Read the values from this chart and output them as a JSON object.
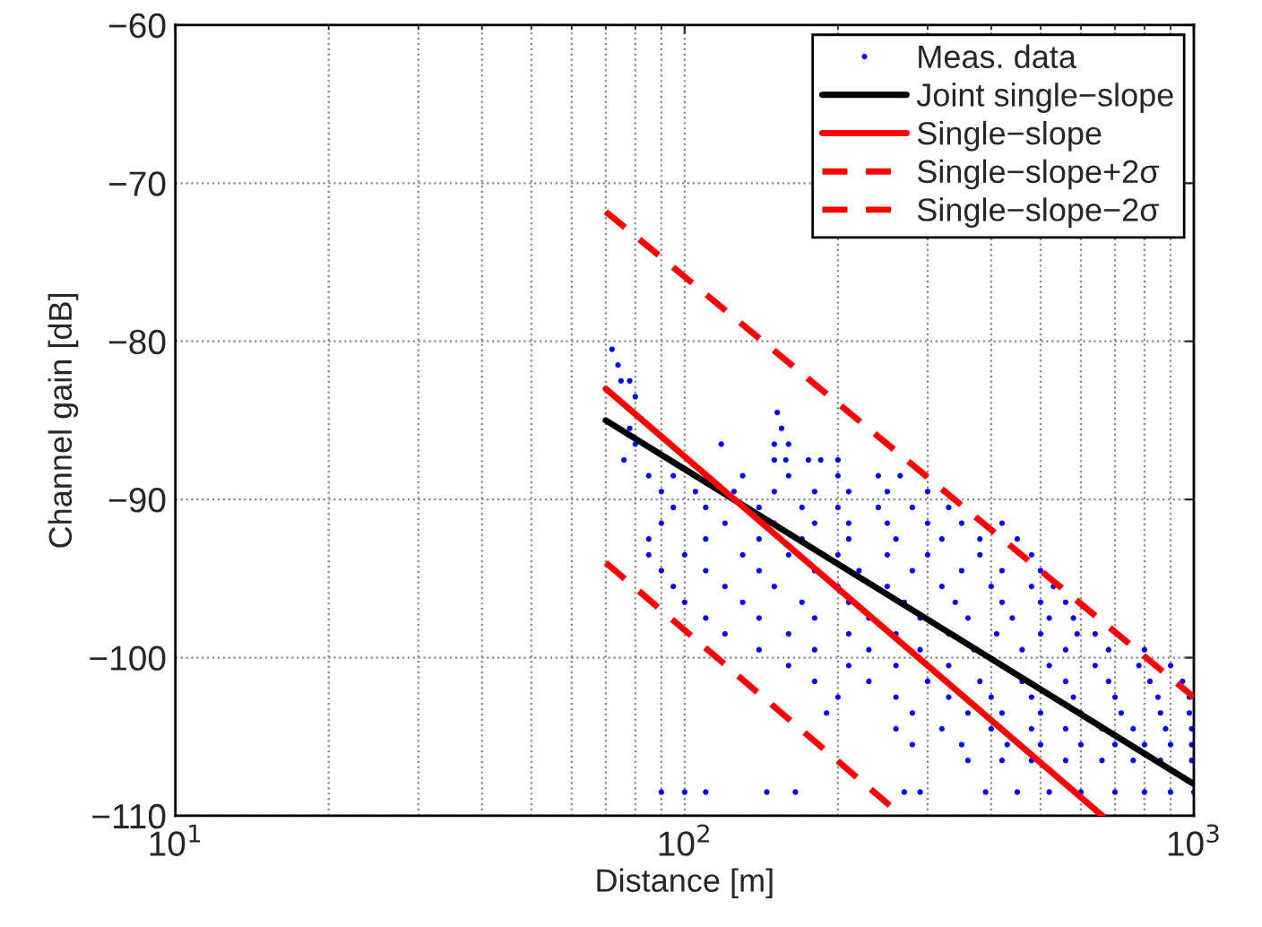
{
  "chart_data": {
    "type": "line",
    "xlabel": "Distance [m]",
    "ylabel": "Channel gain [dB]",
    "log": "x",
    "xlim": [
      10,
      1000
    ],
    "ylim": [
      -110,
      -60
    ],
    "xticks": [
      {
        "value": 10,
        "label": "10$^{1}$"
      },
      {
        "value": 100,
        "label": "10$^{2}$"
      },
      {
        "value": 1000,
        "label": "10$^{3}$"
      }
    ],
    "yticks": [
      {
        "value": -110,
        "label": "−110"
      },
      {
        "value": -100,
        "label": "−100"
      },
      {
        "value": -90,
        "label": "−90"
      },
      {
        "value": -80,
        "label": "−80"
      },
      {
        "value": -70,
        "label": "−70"
      },
      {
        "value": -60,
        "label": "−60"
      }
    ],
    "grid": true,
    "legend": "top right",
    "series": [
      {
        "name": "Meas. data",
        "type": "scatter",
        "color": "#0000ff",
        "marker": "circle",
        "x": [
          72,
          74,
          75,
          78,
          80,
          152,
          78,
          155,
          80,
          118,
          150,
          160,
          76,
          150,
          158,
          175,
          185,
          200,
          85,
          95,
          110,
          130,
          160,
          200,
          240,
          265,
          90,
          105,
          125,
          150,
          180,
          210,
          250,
          300,
          95,
          110,
          140,
          170,
          200,
          240,
          280,
          330,
          90,
          120,
          150,
          180,
          210,
          250,
          300,
          350,
          420,
          85,
          110,
          140,
          170,
          210,
          260,
          320,
          380,
          450,
          85,
          100,
          130,
          160,
          200,
          250,
          300,
          380,
          480,
          90,
          110,
          140,
          180,
          220,
          280,
          350,
          420,
          500,
          95,
          120,
          150,
          200,
          250,
          320,
          400,
          480,
          530,
          100,
          130,
          170,
          210,
          270,
          340,
          420,
          500,
          560,
          110,
          140,
          180,
          230,
          290,
          360,
          440,
          520,
          580,
          120,
          160,
          210,
          260,
          330,
          410,
          500,
          590,
          640,
          140,
          180,
          230,
          290,
          370,
          460,
          560,
          680,
          800,
          160,
          210,
          260,
          330,
          420,
          520,
          640,
          780,
          900,
          180,
          230,
          300,
          380,
          460,
          560,
          680,
          820,
          950,
          200,
          260,
          330,
          400,
          480,
          580,
          700,
          850,
          980,
          190,
          280,
          360,
          420,
          500,
          600,
          720,
          860,
          980,
          260,
          320,
          400,
          480,
          560,
          660,
          760,
          880,
          990,
          280,
          350,
          430,
          500,
          600,
          700,
          800,
          900,
          990,
          360,
          420,
          480,
          560,
          660,
          760,
          860,
          990,
          90,
          100,
          110,
          145,
          165,
          270,
          290,
          390,
          450,
          520,
          600,
          700,
          800,
          900,
          1000
        ],
        "values": [
          -80.5,
          -81.5,
          -82.5,
          -82.5,
          -83.5,
          -84.5,
          -85.5,
          -85.5,
          -86.5,
          -86.5,
          -86.5,
          -86.5,
          -87.5,
          -87.5,
          -87.5,
          -87.5,
          -87.5,
          -87.5,
          -88.5,
          -88.5,
          null,
          -88.5,
          -88.5,
          -88.5,
          -88.5,
          -88.5,
          -89.5,
          -89.5,
          -89.5,
          -89.5,
          -89.5,
          -89.5,
          -89.5,
          -89.5,
          -90.5,
          -90.5,
          -90.5,
          -90.5,
          -90.5,
          -90.5,
          -90.5,
          -90.5,
          -91.5,
          -91.5,
          -91.5,
          -91.5,
          -91.5,
          -91.5,
          -91.5,
          -91.5,
          -91.5,
          -92.5,
          -92.5,
          -92.5,
          -92.5,
          -92.5,
          -92.5,
          -92.5,
          -92.5,
          -92.5,
          -93.5,
          -93.5,
          -93.5,
          -93.5,
          -93.5,
          -93.5,
          -93.5,
          -93.5,
          -93.5,
          -94.5,
          -94.5,
          -94.5,
          -94.5,
          -94.5,
          -94.5,
          -94.5,
          -94.5,
          -94.5,
          -95.5,
          -95.5,
          -95.5,
          -95.5,
          -95.5,
          -95.5,
          -95.5,
          -95.5,
          -95.5,
          -96.5,
          -96.5,
          -96.5,
          -96.5,
          -96.5,
          -96.5,
          -96.5,
          -96.5,
          -96.5,
          -97.5,
          -97.5,
          -97.5,
          -97.5,
          -97.5,
          -97.5,
          -97.5,
          -97.5,
          -97.5,
          -98.5,
          -98.5,
          -98.5,
          -98.5,
          -98.5,
          -98.5,
          -98.5,
          -98.5,
          -98.5,
          -99.5,
          -99.5,
          -99.5,
          -99.5,
          -99.5,
          -99.5,
          -99.5,
          -99.5,
          -99.5,
          -100.5,
          -100.5,
          -100.5,
          -100.5,
          -100.5,
          -100.5,
          -100.5,
          -100.5,
          -100.5,
          -101.5,
          -101.5,
          -101.5,
          -101.5,
          -101.5,
          -101.5,
          -101.5,
          -101.5,
          -101.5,
          -102.5,
          -102.5,
          -102.5,
          -102.5,
          -102.5,
          -102.5,
          -102.5,
          -102.5,
          -102.5,
          -103.5,
          -103.5,
          -103.5,
          -103.5,
          -103.5,
          -103.5,
          -103.5,
          -103.5,
          -103.5,
          -104.5,
          -104.5,
          -104.5,
          -104.5,
          -104.5,
          -104.5,
          -104.5,
          -104.5,
          -104.5,
          -105.5,
          -105.5,
          -105.5,
          -105.5,
          -105.5,
          -105.5,
          -105.5,
          -105.5,
          -105.5,
          -106.5,
          -106.5,
          -106.5,
          -106.5,
          -106.5,
          -106.5,
          -106.5,
          -106.5,
          -108.5,
          -108.5,
          -108.5,
          -108.5,
          -108.5,
          -108.5,
          -108.5,
          -108.5,
          -108.5,
          -108.5,
          -108.5,
          -108.5,
          -108.5,
          -108.5,
          -108.5
        ]
      },
      {
        "name": "Joint single−slope",
        "color": "#000000",
        "line_style": "solid",
        "x": [
          70,
          1000
        ],
        "values": [
          -85,
          -108
        ]
      },
      {
        "name": "Single−slope",
        "color": "#ff0000",
        "line_style": "solid",
        "x": [
          70,
          661
        ],
        "values": [
          -83,
          -110
        ]
      },
      {
        "name": "Single−slope+2σ",
        "color": "#ff0000",
        "line_style": "dashed",
        "x": [
          70,
          1000
        ],
        "values": [
          -71.8,
          -102.5
        ]
      },
      {
        "name": "Single−slope−2σ",
        "color": "#ff0000",
        "line_style": "dashed",
        "x": [
          70,
          267
        ],
        "values": [
          -94,
          -110
        ]
      }
    ]
  }
}
